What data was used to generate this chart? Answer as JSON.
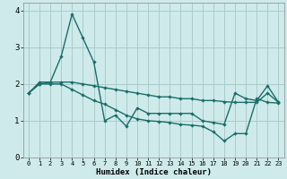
{
  "xlabel": "Humidex (Indice chaleur)",
  "bg_color": "#ceeaea",
  "grid_color": "#aacccc",
  "line_color": "#1a6e6a",
  "marker": "D",
  "marker_size": 2.2,
  "line_width": 1.0,
  "xlim": [
    -0.5,
    23.5
  ],
  "ylim": [
    0,
    4.2
  ],
  "yticks": [
    0,
    1,
    2,
    3,
    4
  ],
  "xticks": [
    0,
    1,
    2,
    3,
    4,
    5,
    6,
    7,
    8,
    9,
    10,
    11,
    12,
    13,
    14,
    15,
    16,
    17,
    18,
    19,
    20,
    21,
    22,
    23
  ],
  "line1_x": [
    0,
    1,
    2,
    3,
    4,
    5,
    6,
    7,
    8,
    9,
    10,
    11,
    12,
    13,
    14,
    15,
    16,
    17,
    18,
    19,
    20,
    21,
    22,
    23
  ],
  "line1_y": [
    1.75,
    2.05,
    2.05,
    2.75,
    3.9,
    3.25,
    2.6,
    1.0,
    1.15,
    0.85,
    1.35,
    1.2,
    1.2,
    1.2,
    1.2,
    1.2,
    1.0,
    0.95,
    0.9,
    1.75,
    1.6,
    1.55,
    1.95,
    1.5
  ],
  "line2_x": [
    0,
    1,
    2,
    3,
    4,
    5,
    6,
    7,
    8,
    9,
    10,
    11,
    12,
    13,
    14,
    15,
    16,
    17,
    18,
    19,
    20,
    21,
    22,
    23
  ],
  "line2_y": [
    1.75,
    2.0,
    2.05,
    2.05,
    2.05,
    2.0,
    1.95,
    1.9,
    1.85,
    1.8,
    1.75,
    1.7,
    1.65,
    1.65,
    1.6,
    1.6,
    1.55,
    1.55,
    1.52,
    1.5,
    1.5,
    1.5,
    1.75,
    1.5
  ],
  "line3_x": [
    0,
    1,
    2,
    3,
    4,
    5,
    6,
    7,
    8,
    9,
    10,
    11,
    12,
    13,
    14,
    15,
    16,
    17,
    18,
    19,
    20,
    21,
    22,
    23
  ],
  "line3_y": [
    1.75,
    2.0,
    2.0,
    2.0,
    1.85,
    1.7,
    1.55,
    1.45,
    1.3,
    1.15,
    1.05,
    1.0,
    0.98,
    0.95,
    0.9,
    0.88,
    0.85,
    0.7,
    0.45,
    0.65,
    0.65,
    1.6,
    1.5,
    1.48
  ]
}
